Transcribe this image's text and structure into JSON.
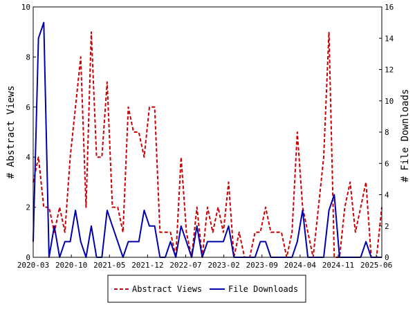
{
  "chart_data": {
    "type": "line",
    "ylabel": "# Abstract Views",
    "y2label": "# File Downloads",
    "ylim": [
      0,
      10
    ],
    "y2lim": [
      0,
      16
    ],
    "yticks": [
      "0",
      "2",
      "4",
      "6",
      "8",
      "10"
    ],
    "y2ticks": [
      "0",
      "2",
      "4",
      "6",
      "8",
      "10",
      "12",
      "14",
      "16"
    ],
    "xlim": [
      "2020-03",
      "2025-07"
    ],
    "xticks": [
      "2020-03",
      "2020-10",
      "2021-05",
      "2021-12",
      "2022-07",
      "2023-02",
      "2023-09",
      "2024-04",
      "2024-11",
      "2025-06"
    ],
    "grid": false,
    "legend_position": "bottom",
    "series": [
      {
        "name": "Abstract Views",
        "axis": "left",
        "color": "#cc0000",
        "dash": true,
        "points": [
          [
            "2020-03",
            3
          ],
          [
            "2020-03",
            4
          ],
          [
            "2020-04",
            2
          ],
          [
            "2020-05",
            2
          ],
          [
            "2020-06",
            1
          ],
          [
            "2020-07",
            2
          ],
          [
            "2020-08",
            1
          ],
          [
            "2020-09",
            4
          ],
          [
            "2020-10",
            6
          ],
          [
            "2020-11",
            8
          ],
          [
            "2020-12",
            2
          ],
          [
            "2021-01",
            9
          ],
          [
            "2021-02",
            4
          ],
          [
            "2021-03",
            4
          ],
          [
            "2021-04",
            7
          ],
          [
            "2021-05",
            2
          ],
          [
            "2021-06",
            2
          ],
          [
            "2021-07",
            1
          ],
          [
            "2021-08",
            6
          ],
          [
            "2021-09",
            5
          ],
          [
            "2021-10",
            5
          ],
          [
            "2021-11",
            4
          ],
          [
            "2021-12",
            6
          ],
          [
            "2022-01",
            6
          ],
          [
            "2022-02",
            1
          ],
          [
            "2022-03",
            1
          ],
          [
            "2022-04",
            1
          ],
          [
            "2022-05",
            0
          ],
          [
            "2022-06",
            4
          ],
          [
            "2022-07",
            1
          ],
          [
            "2022-08",
            0
          ],
          [
            "2022-09",
            2
          ],
          [
            "2022-10",
            0
          ],
          [
            "2022-11",
            2
          ],
          [
            "2022-12",
            1
          ],
          [
            "2023-01",
            2
          ],
          [
            "2023-02",
            1
          ],
          [
            "2023-03",
            3
          ],
          [
            "2023-04",
            0
          ],
          [
            "2023-05",
            1
          ],
          [
            "2023-06",
            0
          ],
          [
            "2023-07",
            0
          ],
          [
            "2023-08",
            1
          ],
          [
            "2023-09",
            1
          ],
          [
            "2023-10",
            2
          ],
          [
            "2023-11",
            1
          ],
          [
            "2023-12",
            1
          ],
          [
            "2024-01",
            1
          ],
          [
            "2024-02",
            0
          ],
          [
            "2024-03",
            1
          ],
          [
            "2024-04",
            5
          ],
          [
            "2024-05",
            2
          ],
          [
            "2024-06",
            1
          ],
          [
            "2024-07",
            0
          ],
          [
            "2024-08",
            2
          ],
          [
            "2024-09",
            4
          ],
          [
            "2024-10",
            9
          ],
          [
            "2024-11",
            0
          ],
          [
            "2024-12",
            0
          ],
          [
            "2025-01",
            2
          ],
          [
            "2025-02",
            3
          ],
          [
            "2025-03",
            1
          ],
          [
            "2025-04",
            2
          ],
          [
            "2025-05",
            3
          ],
          [
            "2025-06",
            0
          ],
          [
            "2025-07",
            0
          ],
          [
            "2025-07",
            2
          ]
        ]
      },
      {
        "name": "File Downloads",
        "axis": "right",
        "color": "#0000aa",
        "dash": false,
        "points": [
          [
            "2020-03",
            1
          ],
          [
            "2020-03",
            14
          ],
          [
            "2020-03",
            15
          ],
          [
            "2020-04",
            0
          ],
          [
            "2020-05",
            2
          ],
          [
            "2020-06",
            0
          ],
          [
            "2020-07",
            1
          ],
          [
            "2020-08",
            1
          ],
          [
            "2020-09",
            3
          ],
          [
            "2020-10",
            1
          ],
          [
            "2020-11",
            0
          ],
          [
            "2020-12",
            2
          ],
          [
            "2021-01",
            0
          ],
          [
            "2021-02",
            0
          ],
          [
            "2021-03",
            3
          ],
          [
            "2021-04",
            2
          ],
          [
            "2021-05",
            1
          ],
          [
            "2021-06",
            0
          ],
          [
            "2021-07",
            1
          ],
          [
            "2021-08",
            1
          ],
          [
            "2021-09",
            1
          ],
          [
            "2021-10",
            3
          ],
          [
            "2021-11",
            2
          ],
          [
            "2021-12",
            2
          ],
          [
            "2022-01",
            0
          ],
          [
            "2022-02",
            0
          ],
          [
            "2022-03",
            1
          ],
          [
            "2022-04",
            0
          ],
          [
            "2022-05",
            2
          ],
          [
            "2022-06",
            1
          ],
          [
            "2022-07",
            0
          ],
          [
            "2022-08",
            2
          ],
          [
            "2022-09",
            0
          ],
          [
            "2022-10",
            1
          ],
          [
            "2022-11",
            1
          ],
          [
            "2022-12",
            1
          ],
          [
            "2023-01",
            1
          ],
          [
            "2023-02",
            2
          ],
          [
            "2023-03",
            0
          ],
          [
            "2023-04",
            0
          ],
          [
            "2023-05",
            0
          ],
          [
            "2023-06",
            0
          ],
          [
            "2023-07",
            0
          ],
          [
            "2023-08",
            1
          ],
          [
            "2023-09",
            1
          ],
          [
            "2023-10",
            0
          ],
          [
            "2023-11",
            0
          ],
          [
            "2023-12",
            0
          ],
          [
            "2024-01",
            0
          ],
          [
            "2024-02",
            0
          ],
          [
            "2024-03",
            1
          ],
          [
            "2024-04",
            3
          ],
          [
            "2024-05",
            0
          ],
          [
            "2024-06",
            0
          ],
          [
            "2024-07",
            0
          ],
          [
            "2024-08",
            0
          ],
          [
            "2024-09",
            3
          ],
          [
            "2024-10",
            4
          ],
          [
            "2024-11",
            0
          ],
          [
            "2024-12",
            0
          ],
          [
            "2025-01",
            0
          ],
          [
            "2025-02",
            0
          ],
          [
            "2025-03",
            0
          ],
          [
            "2025-04",
            1
          ],
          [
            "2025-05",
            0
          ],
          [
            "2025-06",
            0
          ],
          [
            "2025-07",
            0
          ]
        ]
      }
    ]
  }
}
